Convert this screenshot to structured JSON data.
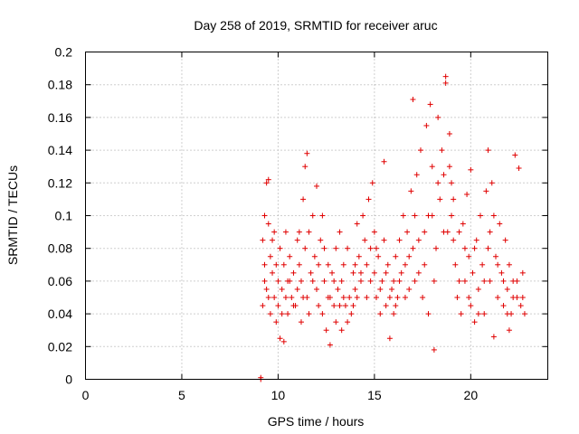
{
  "chart_data": {
    "type": "scatter",
    "title": "Day 258 of 2019, SRMTID for receiver aruc",
    "xlabel": "GPS time / hours",
    "ylabel": "SRMTID / TECUs",
    "xlim": [
      0,
      24
    ],
    "ylim": [
      0,
      0.2
    ],
    "xticks": [
      0,
      5,
      10,
      15,
      20
    ],
    "yticks": [
      0,
      0.02,
      0.04,
      0.06,
      0.08,
      0.1,
      0.12,
      0.14,
      0.16,
      0.18,
      0.2
    ],
    "xtick_labels": [
      "0",
      "5",
      "10",
      "15",
      "20"
    ],
    "ytick_labels": [
      "0",
      "0.02",
      "0.04",
      "0.06",
      "0.08",
      "0.1",
      "0.12",
      "0.14",
      "0.16",
      "0.18",
      "0.2"
    ],
    "grid": true,
    "marker": "+",
    "color": "#e00000",
    "series": [
      {
        "name": "SRMTID",
        "points": [
          [
            9.1,
            0.0
          ],
          [
            9.1,
            0.001
          ],
          [
            9.2,
            0.085
          ],
          [
            9.3,
            0.07
          ],
          [
            9.3,
            0.1
          ],
          [
            9.4,
            0.12
          ],
          [
            9.4,
            0.055
          ],
          [
            9.5,
            0.122
          ],
          [
            9.5,
            0.095
          ],
          [
            9.6,
            0.04
          ],
          [
            9.6,
            0.075
          ],
          [
            9.7,
            0.065
          ],
          [
            9.8,
            0.05
          ],
          [
            9.8,
            0.09
          ],
          [
            9.9,
            0.035
          ],
          [
            10.0,
            0.06
          ],
          [
            10.0,
            0.045
          ],
          [
            10.1,
            0.025
          ],
          [
            10.1,
            0.08
          ],
          [
            10.2,
            0.055
          ],
          [
            10.3,
            0.023
          ],
          [
            10.3,
            0.07
          ],
          [
            10.4,
            0.09
          ],
          [
            10.5,
            0.06
          ],
          [
            10.5,
            0.04
          ],
          [
            10.6,
            0.075
          ],
          [
            10.7,
            0.05
          ],
          [
            10.8,
            0.065
          ],
          [
            10.9,
            0.045
          ],
          [
            11.0,
            0.085
          ],
          [
            11.0,
            0.055
          ],
          [
            11.1,
            0.07
          ],
          [
            11.2,
            0.06
          ],
          [
            11.2,
            0.035
          ],
          [
            11.3,
            0.11
          ],
          [
            11.4,
            0.13
          ],
          [
            11.4,
            0.08
          ],
          [
            11.5,
            0.138
          ],
          [
            11.5,
            0.05
          ],
          [
            11.6,
            0.09
          ],
          [
            11.7,
            0.065
          ],
          [
            11.8,
            0.1
          ],
          [
            11.9,
            0.075
          ],
          [
            12.0,
            0.055
          ],
          [
            12.0,
            0.118
          ],
          [
            12.1,
            0.045
          ],
          [
            12.2,
            0.085
          ],
          [
            12.3,
            0.04
          ],
          [
            12.3,
            0.1
          ],
          [
            12.4,
            0.06
          ],
          [
            12.5,
            0.03
          ],
          [
            12.6,
            0.07
          ],
          [
            12.6,
            0.05
          ],
          [
            12.7,
            0.021
          ],
          [
            12.8,
            0.065
          ],
          [
            12.9,
            0.045
          ],
          [
            13.0,
            0.035
          ],
          [
            13.0,
            0.08
          ],
          [
            13.1,
            0.055
          ],
          [
            13.2,
            0.09
          ],
          [
            13.3,
            0.03
          ],
          [
            13.3,
            0.06
          ],
          [
            13.4,
            0.07
          ],
          [
            13.5,
            0.045
          ],
          [
            13.6,
            0.08
          ],
          [
            13.7,
            0.05
          ],
          [
            13.8,
            0.04
          ],
          [
            13.9,
            0.065
          ],
          [
            14.0,
            0.07
          ],
          [
            14.0,
            0.055
          ],
          [
            14.1,
            0.095
          ],
          [
            14.2,
            0.075
          ],
          [
            14.3,
            0.06
          ],
          [
            14.4,
            0.1
          ],
          [
            14.5,
            0.085
          ],
          [
            14.6,
            0.07
          ],
          [
            14.7,
            0.11
          ],
          [
            14.8,
            0.08
          ],
          [
            14.9,
            0.12
          ],
          [
            15.0,
            0.065
          ],
          [
            15.0,
            0.09
          ],
          [
            15.1,
            0.05
          ],
          [
            15.2,
            0.075
          ],
          [
            15.3,
            0.04
          ],
          [
            15.4,
            0.06
          ],
          [
            15.5,
            0.085
          ],
          [
            15.5,
            0.133
          ],
          [
            15.6,
            0.045
          ],
          [
            15.7,
            0.07
          ],
          [
            15.8,
            0.025
          ],
          [
            15.9,
            0.055
          ],
          [
            16.0,
            0.04
          ],
          [
            16.0,
            0.06
          ],
          [
            16.1,
            0.075
          ],
          [
            16.2,
            0.05
          ],
          [
            16.3,
            0.085
          ],
          [
            16.4,
            0.065
          ],
          [
            16.5,
            0.1
          ],
          [
            16.6,
            0.07
          ],
          [
            16.7,
            0.09
          ],
          [
            16.8,
            0.055
          ],
          [
            16.9,
            0.115
          ],
          [
            17.0,
            0.171
          ],
          [
            17.0,
            0.08
          ],
          [
            17.1,
            0.1
          ],
          [
            17.2,
            0.125
          ],
          [
            17.3,
            0.065
          ],
          [
            17.4,
            0.14
          ],
          [
            17.5,
            0.05
          ],
          [
            17.6,
            0.09
          ],
          [
            17.7,
            0.155
          ],
          [
            17.8,
            0.04
          ],
          [
            17.9,
            0.168
          ],
          [
            18.0,
            0.13
          ],
          [
            18.0,
            0.1
          ],
          [
            18.1,
            0.018
          ],
          [
            18.2,
            0.08
          ],
          [
            18.3,
            0.16
          ],
          [
            18.4,
            0.11
          ],
          [
            18.5,
            0.14
          ],
          [
            18.6,
            0.125
          ],
          [
            18.7,
            0.185
          ],
          [
            18.7,
            0.181
          ],
          [
            18.8,
            0.09
          ],
          [
            18.9,
            0.15
          ],
          [
            19.0,
            0.12
          ],
          [
            19.0,
            0.1
          ],
          [
            19.1,
            0.085
          ],
          [
            19.2,
            0.07
          ],
          [
            19.3,
            0.05
          ],
          [
            19.4,
            0.09
          ],
          [
            19.5,
            0.04
          ],
          [
            19.6,
            0.095
          ],
          [
            19.7,
            0.06
          ],
          [
            19.8,
            0.113
          ],
          [
            19.9,
            0.075
          ],
          [
            20.0,
            0.128
          ],
          [
            20.0,
            0.045
          ],
          [
            20.1,
            0.065
          ],
          [
            20.2,
            0.035
          ],
          [
            20.3,
            0.085
          ],
          [
            20.4,
            0.055
          ],
          [
            20.5,
            0.1
          ],
          [
            20.6,
            0.07
          ],
          [
            20.7,
            0.04
          ],
          [
            20.8,
            0.115
          ],
          [
            20.9,
            0.14
          ],
          [
            21.0,
            0.09
          ],
          [
            21.0,
            0.06
          ],
          [
            21.1,
            0.12
          ],
          [
            21.2,
            0.026
          ],
          [
            21.3,
            0.075
          ],
          [
            21.4,
            0.05
          ],
          [
            21.5,
            0.095
          ],
          [
            21.6,
            0.065
          ],
          [
            21.7,
            0.045
          ],
          [
            21.8,
            0.085
          ],
          [
            21.9,
            0.055
          ],
          [
            22.0,
            0.03
          ],
          [
            22.0,
            0.07
          ],
          [
            22.1,
            0.04
          ],
          [
            22.2,
            0.06
          ],
          [
            22.3,
            0.137
          ],
          [
            22.4,
            0.05
          ],
          [
            22.5,
            0.129
          ],
          [
            22.6,
            0.045
          ],
          [
            22.7,
            0.065
          ],
          [
            22.8,
            0.04
          ],
          [
            9.2,
            0.045
          ],
          [
            9.3,
            0.06
          ],
          [
            9.5,
            0.05
          ],
          [
            9.7,
            0.085
          ],
          [
            9.9,
            0.07
          ],
          [
            10.2,
            0.04
          ],
          [
            10.4,
            0.05
          ],
          [
            10.6,
            0.06
          ],
          [
            10.8,
            0.045
          ],
          [
            11.1,
            0.09
          ],
          [
            11.3,
            0.05
          ],
          [
            11.6,
            0.04
          ],
          [
            11.8,
            0.06
          ],
          [
            12.1,
            0.07
          ],
          [
            12.4,
            0.08
          ],
          [
            12.7,
            0.05
          ],
          [
            12.9,
            0.06
          ],
          [
            13.2,
            0.045
          ],
          [
            13.4,
            0.05
          ],
          [
            13.6,
            0.035
          ],
          [
            13.9,
            0.045
          ],
          [
            14.1,
            0.05
          ],
          [
            14.3,
            0.065
          ],
          [
            14.6,
            0.05
          ],
          [
            14.8,
            0.06
          ],
          [
            15.1,
            0.08
          ],
          [
            15.3,
            0.055
          ],
          [
            15.6,
            0.065
          ],
          [
            15.8,
            0.05
          ],
          [
            16.1,
            0.045
          ],
          [
            16.3,
            0.06
          ],
          [
            16.6,
            0.05
          ],
          [
            16.8,
            0.075
          ],
          [
            17.1,
            0.06
          ],
          [
            17.3,
            0.085
          ],
          [
            17.6,
            0.07
          ],
          [
            17.8,
            0.1
          ],
          [
            18.1,
            0.06
          ],
          [
            18.3,
            0.12
          ],
          [
            18.6,
            0.09
          ],
          [
            18.9,
            0.13
          ],
          [
            19.1,
            0.11
          ],
          [
            19.4,
            0.06
          ],
          [
            19.7,
            0.08
          ],
          [
            19.9,
            0.05
          ],
          [
            20.2,
            0.08
          ],
          [
            20.4,
            0.04
          ],
          [
            20.7,
            0.06
          ],
          [
            20.9,
            0.08
          ],
          [
            21.2,
            0.1
          ],
          [
            21.4,
            0.07
          ],
          [
            21.7,
            0.06
          ],
          [
            21.9,
            0.04
          ],
          [
            22.2,
            0.05
          ],
          [
            22.4,
            0.06
          ],
          [
            22.7,
            0.05
          ]
        ]
      }
    ]
  }
}
